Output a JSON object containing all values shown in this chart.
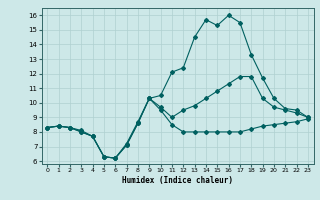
{
  "title": "",
  "xlabel": "Humidex (Indice chaleur)",
  "x_ticks": [
    0,
    1,
    2,
    3,
    4,
    5,
    6,
    7,
    8,
    9,
    10,
    11,
    12,
    13,
    14,
    15,
    16,
    17,
    18,
    19,
    20,
    21,
    22,
    23
  ],
  "xlim": [
    -0.5,
    23.5
  ],
  "ylim": [
    5.8,
    16.5
  ],
  "y_ticks": [
    6,
    7,
    8,
    9,
    10,
    11,
    12,
    13,
    14,
    15,
    16
  ],
  "bg_color": "#cde8e8",
  "grid_color": "#b0d0d0",
  "line_color": "#006060",
  "lines": [
    {
      "x": [
        0,
        1,
        2,
        3,
        4,
        5,
        6,
        7,
        8,
        9,
        10,
        11,
        12,
        13,
        14,
        15,
        16,
        17,
        18,
        19,
        20,
        21,
        22,
        23
      ],
      "y": [
        8.3,
        8.4,
        8.3,
        8.0,
        7.7,
        6.3,
        6.2,
        7.1,
        8.6,
        10.3,
        9.5,
        8.5,
        8.0,
        8.0,
        8.0,
        8.0,
        8.0,
        8.0,
        8.2,
        8.4,
        8.5,
        8.6,
        8.7,
        8.9
      ]
    },
    {
      "x": [
        0,
        1,
        2,
        3,
        4,
        5,
        6,
        7,
        8,
        9,
        10,
        11,
        12,
        13,
        14,
        15,
        16,
        17,
        18,
        19,
        20,
        21,
        22,
        23
      ],
      "y": [
        8.3,
        8.4,
        8.3,
        8.0,
        7.7,
        6.3,
        6.2,
        7.1,
        8.6,
        10.3,
        9.7,
        9.0,
        9.5,
        9.8,
        10.3,
        10.8,
        11.3,
        11.8,
        11.8,
        10.3,
        9.7,
        9.5,
        9.3,
        9.0
      ]
    },
    {
      "x": [
        0,
        1,
        2,
        3,
        4,
        5,
        6,
        7,
        8,
        9,
        10,
        11,
        12,
        13,
        14,
        15,
        16,
        17,
        18,
        19,
        20,
        21,
        22,
        23
      ],
      "y": [
        8.3,
        8.4,
        8.3,
        8.1,
        7.7,
        6.3,
        6.2,
        7.2,
        8.7,
        10.3,
        10.5,
        12.1,
        12.4,
        14.5,
        15.7,
        15.3,
        16.0,
        15.5,
        13.3,
        11.7,
        10.3,
        9.6,
        9.5,
        9.0
      ]
    }
  ]
}
